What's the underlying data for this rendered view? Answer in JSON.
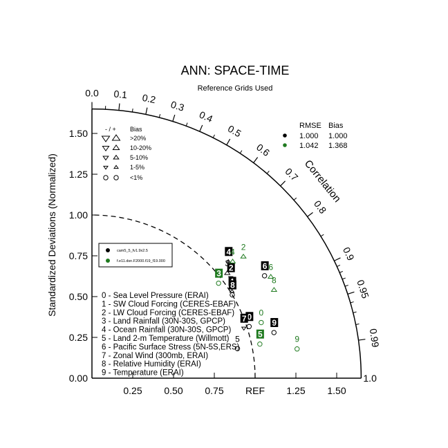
{
  "chart_data": {
    "type": "scatter",
    "title": "ANN: SPACE-TIME",
    "subtitle": "Reference Grids Used",
    "ylabel": "Standardized Deviations (Normalized)",
    "arc_label": "Correlation",
    "ref_label": "REF",
    "x_ticks": [
      "0.25",
      "0.50",
      "0.75",
      "REF",
      "1.25",
      "1.50"
    ],
    "y_ticks": [
      "0.00",
      "0.25",
      "0.50",
      "0.75",
      "1.00",
      "1.25",
      "1.50"
    ],
    "outer_label": "1.0",
    "corr_ticks": [
      "0.0",
      "0.1",
      "0.2",
      "0.3",
      "0.4",
      "0.5",
      "0.6",
      "0.7",
      "0.8",
      "0.9",
      "0.95",
      "0.99"
    ],
    "std_range": [
      0,
      1.65
    ],
    "bias_legend": {
      "header_sign": "- / +",
      "header_bias": "Bias",
      "rows": [
        ">20%",
        "10-20%",
        "5-10%",
        "1-5%",
        "<1%"
      ]
    },
    "stats_legend": {
      "col1": "RMSE",
      "col2": "Bias",
      "rows": [
        {
          "color": "#000000",
          "rmse": "1.000",
          "bias": "1.000"
        },
        {
          "color": "#1f7a1f",
          "rmse": "1.042",
          "bias": "1.368"
        }
      ]
    },
    "series": [
      {
        "name": "cam5_5_fv1.9x2.5",
        "color": "#000000",
        "points": [
          {
            "label": "0",
            "std": 1.014,
            "corr": 0.95,
            "bias": "<1%",
            "dir": ""
          },
          {
            "label": "1",
            "std": 1.01,
            "corr": 0.85,
            "bias": "1-5%",
            "dir": "+"
          },
          {
            "label": "2",
            "std": 1.05,
            "corr": 0.81,
            "bias": "1-5%",
            "dir": "-"
          },
          {
            "label": "3",
            "std": 1.05,
            "corr": 0.79,
            "bias": "5-10%",
            "dir": "+"
          },
          {
            "label": "4",
            "std": 1.1,
            "corr": 0.76,
            "bias": "1-5%",
            "dir": "+"
          },
          {
            "label": "5",
            "std": 0.91,
            "corr": 0.98,
            "bias": "<1%",
            "dir": ""
          },
          {
            "label": "6",
            "std": 1.23,
            "corr": 0.86,
            "bias": "<1%",
            "dir": ""
          },
          {
            "label": "7",
            "std": 0.98,
            "corr": 0.95,
            "bias": "1-5%",
            "dir": "-"
          },
          {
            "label": "8",
            "std": 1.0,
            "corr": 0.86,
            "bias": "<1%",
            "dir": ""
          },
          {
            "label": "9",
            "std": 1.15,
            "corr": 0.97,
            "bias": "<1%",
            "dir": ""
          }
        ]
      },
      {
        "name": "f.e11.dsn.F2000.f19_f19.000",
        "color": "#1f7a1f",
        "points": [
          {
            "label": "0",
            "std": 1.092,
            "corr": 0.95,
            "bias": "<1%",
            "dir": ""
          },
          {
            "label": "2",
            "std": 1.19,
            "corr": 0.78,
            "bias": "5-10%",
            "dir": "+"
          },
          {
            "label": "3",
            "std": 0.97,
            "corr": 0.8,
            "bias": "<1%",
            "dir": ""
          },
          {
            "label": "4",
            "std": 1.12,
            "corr": 0.77,
            "bias": "5-10%",
            "dir": "+"
          },
          {
            "label": "5",
            "std": 1.05,
            "corr": 0.98,
            "bias": "<1%",
            "dir": ""
          },
          {
            "label": "6",
            "std": 1.26,
            "corr": 0.87,
            "bias": "5-10%",
            "dir": "+"
          },
          {
            "label": "8",
            "std": 1.24,
            "corr": 0.9,
            "bias": "5-10%",
            "dir": "+"
          },
          {
            "label": "9",
            "std": 1.27,
            "corr": 0.99,
            "bias": "<1%",
            "dir": ""
          }
        ]
      }
    ],
    "case_legend": [
      "0 - Sea Level Pressure (ERAI)",
      "1 - SW Cloud Forcing (CERES-EBAF)",
      "2 - LW Cloud Forcing (CERES-EBAF)",
      "3 - Land Rainfall (30N-30S, GPCP)",
      "4 - Ocean Rainfall (30N-30S, GPCP)",
      "5 - Land 2-m Temperature (Willmott)",
      "6 - Pacific Surface Stress (5N-5S,ERS)",
      "7 - Zonal Wind (300mb, ERAI)",
      "8 - Relative Humidity (ERAI)",
      "9 - Temperature (ERAI)"
    ]
  }
}
